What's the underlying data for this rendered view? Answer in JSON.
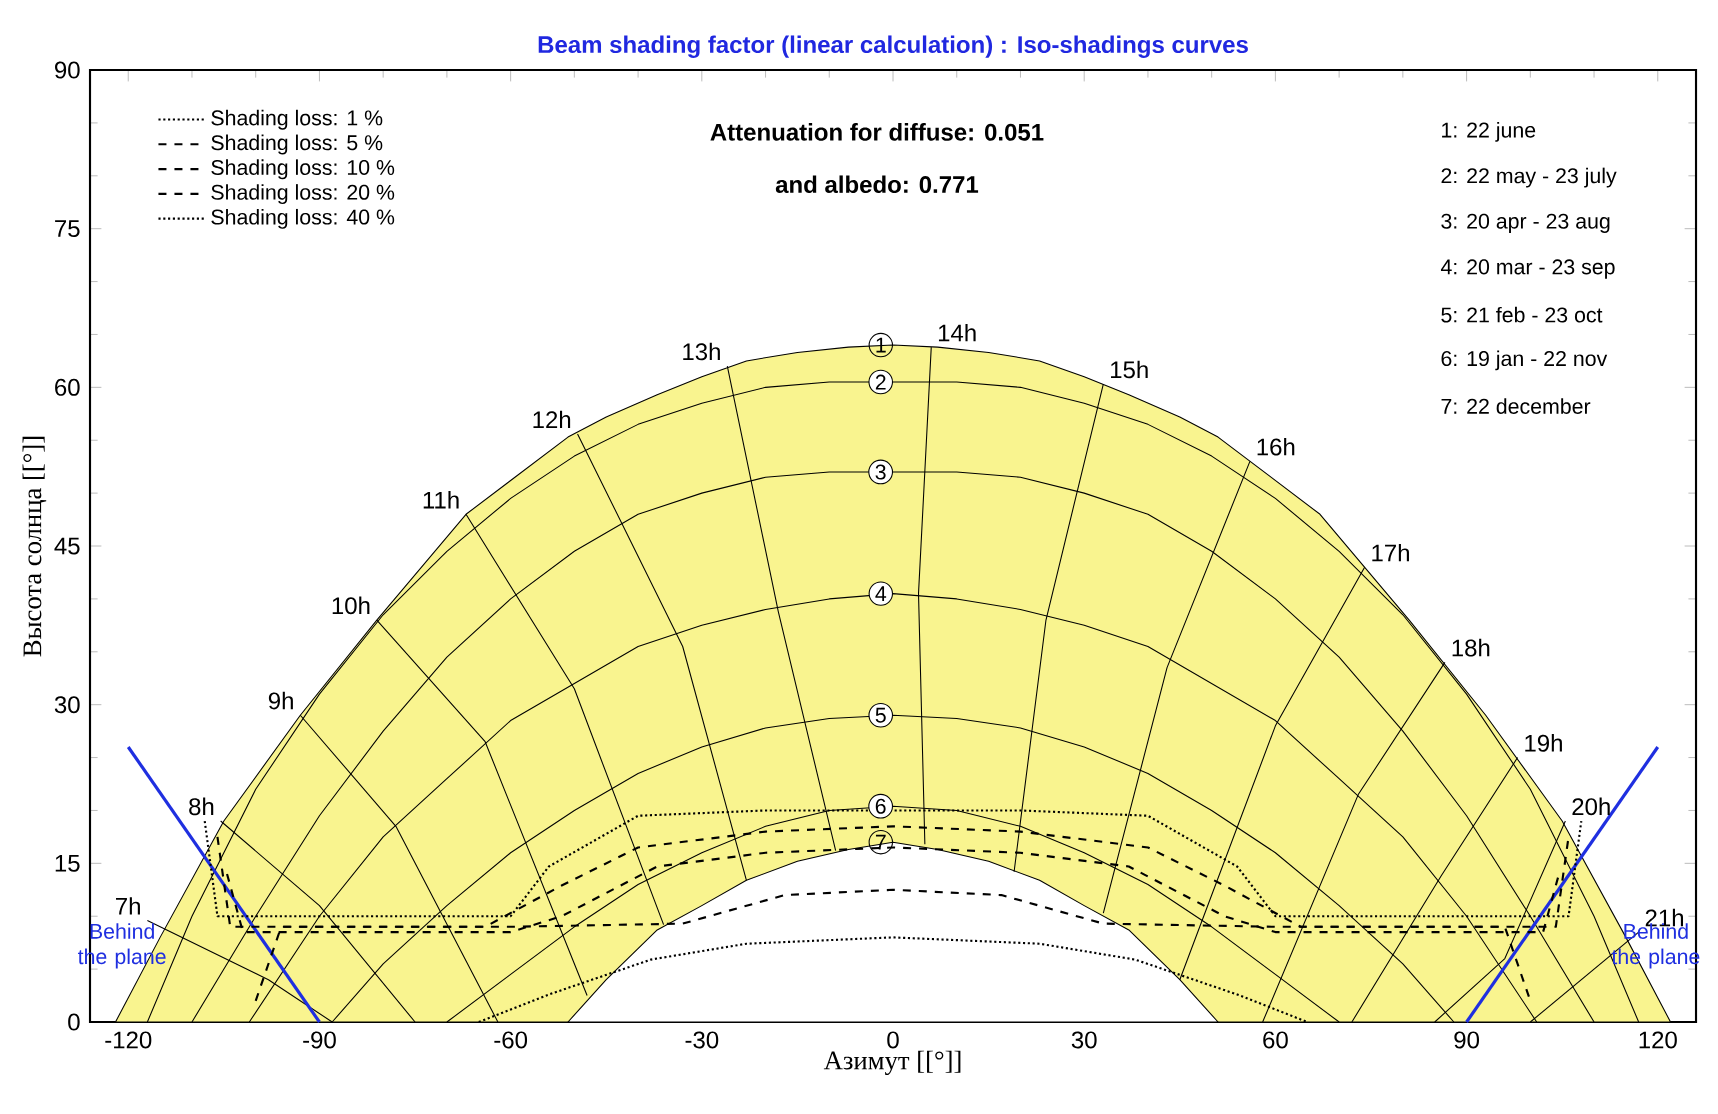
{
  "chart_data": {
    "type": "line",
    "title": "Beam shading factor (linear calculation) : Iso-shadings curves",
    "xlabel": "Азимут [[°]]",
    "ylabel": "Высота солнца [[°]]",
    "xlim": [
      -126,
      126
    ],
    "ylim": [
      0,
      90
    ],
    "xticks": [
      -120,
      -90,
      -60,
      -30,
      0,
      30,
      60,
      90,
      120
    ],
    "yticks": [
      0,
      15,
      30,
      45,
      60,
      75,
      90
    ],
    "legend": "top left",
    "annotations": [
      "Attenuation for diffuse: 0.051",
      "and albedo: 0.771",
      "1: 22 june",
      "2: 22 may - 23 july",
      "3: 20 apr - 23 aug",
      "4: 20 mar - 23 sep",
      "5: 21 feb - 23 oct",
      "6: 19 jan - 22 nov",
      "7: 22 december",
      "Behind the plane",
      "Behind the plane"
    ],
    "series": [
      {
        "type": "area",
        "name": "1",
        "color": "#f9f48f",
        "x": [
          -122,
          -115,
          -105,
          -93,
          -81,
          -67,
          -51,
          -45,
          -37,
          -30,
          -23,
          -15,
          -7,
          0,
          7,
          15,
          23,
          30,
          37,
          45,
          51,
          67,
          81,
          93,
          105,
          115,
          122
        ],
        "values": [
          0,
          8,
          19,
          29,
          38,
          48,
          55.3,
          57.2,
          59.3,
          61,
          62.5,
          63.3,
          63.8,
          64,
          63.8,
          63.3,
          62.5,
          61,
          59.3,
          57.2,
          55.3,
          48,
          38,
          29,
          19,
          8,
          0
        ]
      },
      {
        "name": "2",
        "color": "#000000",
        "x": [
          -117,
          -110,
          -100,
          -90,
          -80,
          -70,
          -60,
          -50,
          -40,
          -30,
          -20,
          -10,
          0,
          10,
          20,
          30,
          40,
          50,
          60,
          70,
          80,
          90,
          100,
          110,
          117
        ],
        "values": [
          0,
          10,
          22,
          31,
          38.5,
          44.5,
          49.5,
          53.5,
          56.5,
          58.5,
          60,
          60.5,
          60.5,
          60.5,
          60,
          58.5,
          56.5,
          53.5,
          49.5,
          44.5,
          38.5,
          31,
          22,
          10,
          0
        ]
      },
      {
        "name": "3",
        "color": "#000000",
        "x": [
          -110,
          -100,
          -90,
          -80,
          -70,
          -60,
          -50,
          -40,
          -30,
          -20,
          -10,
          0,
          10,
          20,
          30,
          40,
          50,
          60,
          70,
          80,
          90,
          100,
          110
        ],
        "values": [
          0,
          10,
          19.5,
          27.5,
          34.5,
          40,
          44.5,
          48,
          50,
          51.5,
          52,
          52,
          52,
          51.5,
          50,
          48,
          44.5,
          40,
          34.5,
          27.5,
          19.5,
          10,
          0
        ]
      },
      {
        "name": "4",
        "color": "#000000",
        "x": [
          -101,
          -90,
          -80,
          -70,
          -60,
          -50,
          -40,
          -30,
          -20,
          -10,
          0,
          10,
          20,
          30,
          40,
          50,
          60,
          70,
          80,
          90,
          101
        ],
        "values": [
          0,
          10,
          17.5,
          23,
          28.5,
          32,
          35.5,
          37.5,
          39,
          40,
          40.5,
          40,
          39,
          37.5,
          35.5,
          32,
          28.5,
          23,
          17.5,
          10,
          0
        ]
      },
      {
        "name": "5",
        "color": "#000000",
        "x": [
          -88,
          -80,
          -70,
          -60,
          -50,
          -40,
          -30,
          -20,
          -10,
          0,
          10,
          20,
          30,
          40,
          50,
          60,
          70,
          80,
          88
        ],
        "values": [
          0,
          5.5,
          11,
          16,
          20,
          23.5,
          26,
          27.8,
          28.7,
          29,
          28.7,
          27.8,
          26,
          23.5,
          20,
          16,
          11,
          5.5,
          0
        ]
      },
      {
        "name": "6",
        "color": "#000000",
        "x": [
          -70,
          -60,
          -50,
          -40,
          -30,
          -20,
          -10,
          0,
          10,
          20,
          30,
          40,
          50,
          60,
          70
        ],
        "values": [
          0,
          4.5,
          9,
          13,
          16,
          18.5,
          20,
          20.4,
          20,
          18.5,
          16,
          13,
          9,
          4.5,
          0
        ]
      },
      {
        "type": "area",
        "name": "7",
        "color": "#ffffff",
        "x": [
          -51,
          -45,
          -37,
          -30,
          -23,
          -15,
          -7,
          0,
          7,
          15,
          23,
          30,
          37,
          45,
          51
        ],
        "values": [
          0,
          4,
          8.7,
          11,
          13.4,
          15.2,
          16.3,
          17,
          16.3,
          15.2,
          13.4,
          11,
          8.7,
          4,
          0
        ]
      },
      {
        "name": "7h",
        "color": "#000000",
        "x": [
          -117,
          -98,
          -88
        ],
        "values": [
          9.6,
          4,
          0
        ]
      },
      {
        "name": "8h",
        "color": "#000000",
        "x": [
          -105.5,
          -90,
          -75
        ],
        "values": [
          19,
          11,
          0
        ]
      },
      {
        "name": "9h",
        "color": "#000000",
        "x": [
          -93,
          -78,
          -62
        ],
        "values": [
          29,
          18.5,
          0
        ]
      },
      {
        "name": "10h",
        "color": "#000000",
        "x": [
          -81,
          -64,
          -48
        ],
        "values": [
          38,
          26.5,
          2.5
        ]
      },
      {
        "name": "11h",
        "color": "#000000",
        "x": [
          -67,
          -50,
          -36
        ],
        "values": [
          48,
          31.5,
          9.2
        ]
      },
      {
        "name": "12h",
        "color": "#000000",
        "x": [
          -49.5,
          -33,
          -23
        ],
        "values": [
          55.6,
          35.5,
          13.4
        ]
      },
      {
        "name": "13h",
        "color": "#000000",
        "x": [
          -26,
          -18,
          -9
        ],
        "values": [
          62,
          38.8,
          16.2
        ]
      },
      {
        "name": "14h",
        "color": "#000000",
        "x": [
          6,
          4,
          5
        ],
        "values": [
          63.8,
          40.5,
          16.8
        ]
      },
      {
        "name": "15h",
        "color": "#000000",
        "x": [
          33,
          24,
          19
        ],
        "values": [
          60.3,
          38,
          14.2
        ]
      },
      {
        "name": "16h",
        "color": "#000000",
        "x": [
          56,
          43,
          33
        ],
        "values": [
          53,
          33.5,
          10.3
        ]
      },
      {
        "name": "17h",
        "color": "#000000",
        "x": [
          74,
          60,
          45
        ],
        "values": [
          43,
          28,
          4
        ]
      },
      {
        "name": "18h",
        "color": "#000000",
        "x": [
          86.6,
          73,
          58
        ],
        "values": [
          34,
          21.5,
          0
        ]
      },
      {
        "name": "19h",
        "color": "#000000",
        "x": [
          98,
          86,
          72
        ],
        "values": [
          25,
          13.8,
          0
        ]
      },
      {
        "name": "20h",
        "color": "#000000",
        "x": [
          105.5,
          96,
          85
        ],
        "values": [
          19,
          6,
          0
        ]
      },
      {
        "name": "21h",
        "color": "#000000",
        "x": [
          117,
          100
        ],
        "values": [
          8.5,
          0
        ]
      },
      {
        "color": "#1f2fe0",
        "x": [
          -120,
          -90
        ],
        "values": [
          26,
          0
        ]
      },
      {
        "color": "#1f2fe0",
        "x": [
          90,
          120
        ],
        "values": [
          0,
          26
        ]
      },
      {
        "name": "Shading loss: 1 %",
        "color": "#000000",
        "line_style": "dotted",
        "x": [
          -108,
          -106,
          -96,
          -60,
          -54,
          -40,
          -20,
          0,
          20,
          40,
          54,
          60,
          96,
          106,
          108
        ],
        "values": [
          19,
          10,
          10,
          10,
          14.7,
          19.5,
          20,
          20,
          20,
          19.5,
          14.7,
          10,
          10,
          10,
          19
        ]
      },
      {
        "name": "Shading loss: 5 %",
        "color": "#000000",
        "line_style": "dashed",
        "x": [
          -106,
          -104,
          -96,
          -64,
          -52,
          -40,
          -20,
          0,
          20,
          40,
          52,
          64,
          96,
          104,
          106
        ],
        "values": [
          17.5,
          9,
          9,
          9,
          12.9,
          16.5,
          18,
          18.5,
          18,
          16.5,
          12.9,
          9,
          9,
          9,
          17.5
        ]
      },
      {
        "name": "Shading loss: 10 %",
        "color": "#000000",
        "line_style": "dashed",
        "x": [
          -104.5,
          -102,
          -90,
          -60,
          -52,
          -37,
          -20,
          0,
          20,
          37,
          52,
          60,
          90,
          102,
          104.5
        ],
        "values": [
          14,
          8.5,
          8.5,
          8.5,
          10,
          14.7,
          16,
          16.5,
          16,
          14.7,
          10,
          8.5,
          8.5,
          8.5,
          14
        ]
      },
      {
        "name": "Shading loss: 20 %",
        "color": "#000000",
        "line_style": "dashed",
        "x": [
          -100,
          -96,
          -60,
          -33,
          -17,
          0,
          17,
          33,
          60,
          96,
          100
        ],
        "values": [
          2,
          9,
          9,
          9.3,
          12,
          12.5,
          12,
          9.3,
          9,
          9,
          2
        ]
      },
      {
        "name": "Shading loss: 40 %",
        "color": "#000000",
        "line_style": "dotted",
        "x": [
          -65,
          -54,
          -38,
          -23,
          0,
          23,
          38,
          54,
          65
        ],
        "values": [
          0,
          2.6,
          5.9,
          7.4,
          8,
          7.4,
          5.9,
          2.6,
          0
        ]
      }
    ]
  }
}
